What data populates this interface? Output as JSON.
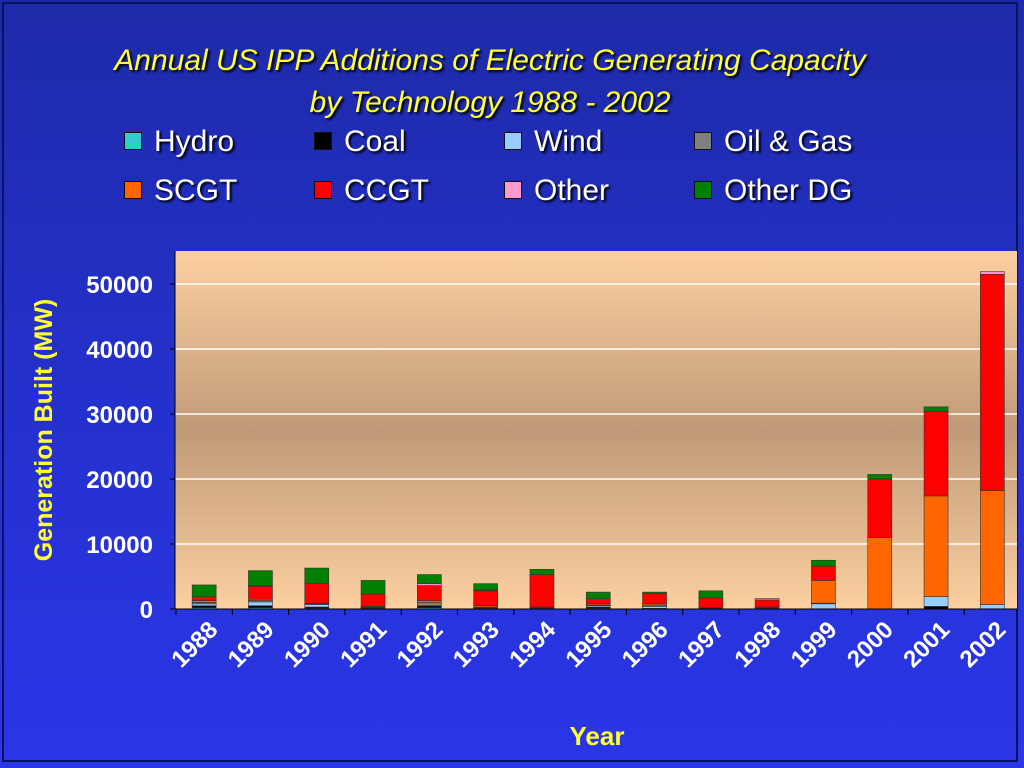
{
  "page": {
    "title_line1": "Annual US IPP Additions of Electric Generating Capacity",
    "title_line2": "by Technology  1988 - 2002"
  },
  "colors": {
    "background": "#2430c8",
    "title": "#ffff33",
    "plot_bg_top": "#fcd0a0",
    "plot_bg_mid": "#c09a78",
    "gridline": "#ffffff"
  },
  "legend": [
    {
      "label": "Hydro",
      "color": "#33cccc"
    },
    {
      "label": "Coal",
      "color": "#000000"
    },
    {
      "label": "Wind",
      "color": "#99ccff"
    },
    {
      "label": "Oil & Gas",
      "color": "#808080"
    },
    {
      "label": "SCGT",
      "color": "#ff6600"
    },
    {
      "label": "CCGT",
      "color": "#ff0000"
    },
    {
      "label": "Other",
      "color": "#ff99cc"
    },
    {
      "label": "Other DG",
      "color": "#008000"
    }
  ],
  "chart_data": {
    "type": "bar",
    "stacked": true,
    "title": "Annual US IPP Additions of Electric Generating Capacity by Technology  1988 - 2002",
    "xlabel": "Year",
    "ylabel": "Generation Built (MW)",
    "ylim": [
      0,
      55000
    ],
    "yticks": [
      0,
      10000,
      20000,
      30000,
      40000,
      50000
    ],
    "grid": true,
    "legend_position": "top",
    "categories": [
      "1988",
      "1989",
      "1990",
      "1991",
      "1992",
      "1993",
      "1994",
      "1995",
      "1996",
      "1997",
      "1998",
      "1999",
      "2000",
      "2001",
      "2002"
    ],
    "series": [
      {
        "name": "Hydro",
        "color": "#33cccc",
        "values": [
          200,
          200,
          100,
          100,
          200,
          100,
          100,
          100,
          100,
          0,
          0,
          0,
          0,
          0,
          0
        ]
      },
      {
        "name": "Coal",
        "color": "#000000",
        "values": [
          300,
          300,
          200,
          100,
          300,
          100,
          0,
          200,
          0,
          0,
          0,
          0,
          0,
          400,
          0
        ]
      },
      {
        "name": "Wind",
        "color": "#99ccff",
        "values": [
          300,
          600,
          400,
          0,
          0,
          0,
          0,
          200,
          300,
          0,
          100,
          800,
          0,
          1500,
          700
        ]
      },
      {
        "name": "Oil & Gas",
        "color": "#808080",
        "values": [
          200,
          200,
          100,
          100,
          500,
          100,
          100,
          100,
          200,
          100,
          100,
          100,
          0,
          0,
          0
        ]
      },
      {
        "name": "SCGT",
        "color": "#ff6600",
        "values": [
          300,
          200,
          100,
          100,
          300,
          200,
          100,
          200,
          200,
          100,
          100,
          3500,
          11000,
          15500,
          17500
        ]
      },
      {
        "name": "CCGT",
        "color": "#ff0000",
        "values": [
          600,
          2000,
          3000,
          1900,
          2300,
          2300,
          5000,
          800,
          1600,
          1500,
          1100,
          2200,
          9000,
          13000,
          33300
        ]
      },
      {
        "name": "Other",
        "color": "#ff99cc",
        "values": [
          0,
          100,
          0,
          0,
          300,
          100,
          0,
          0,
          0,
          0,
          200,
          0,
          0,
          0,
          400
        ]
      },
      {
        "name": "Other DG",
        "color": "#008000",
        "values": [
          1800,
          2300,
          2400,
          2100,
          1400,
          1000,
          800,
          1000,
          200,
          1100,
          0,
          900,
          700,
          700,
          0
        ]
      }
    ]
  }
}
